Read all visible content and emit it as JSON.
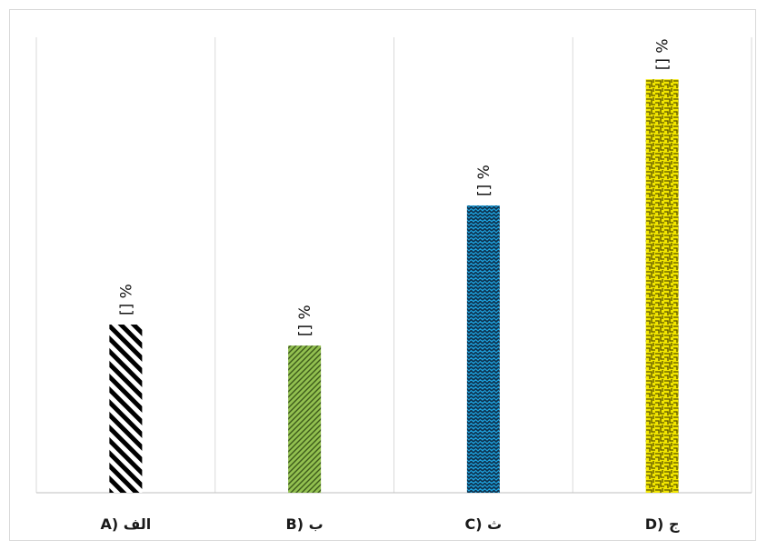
{
  "chart_data": {
    "type": "bar",
    "title": "",
    "xlabel": "",
    "ylabel": "",
    "categories": [
      "A) الف",
      "B) ب",
      "C) ث",
      "D) ج"
    ],
    "values": [
      24,
      21,
      41,
      59
    ],
    "data_labels": [
      "[] %",
      "[] %",
      "[] %",
      "[] %"
    ],
    "ylim": [
      0,
      65
    ],
    "grid": "vertical category dividers",
    "legend": "none",
    "bar_styles": [
      {
        "pattern": "diagonal-stripes",
        "fg": "#000000",
        "bg": "#ffffff"
      },
      {
        "pattern": "fine-diagonal",
        "fg": "#3d5a1a",
        "bg": "#92c050"
      },
      {
        "pattern": "zigzag",
        "fg": "#0d2f4a",
        "bg": "#1ea1dd"
      },
      {
        "pattern": "weave",
        "fg": "#5a5200",
        "bg": "#f2e600"
      }
    ]
  }
}
